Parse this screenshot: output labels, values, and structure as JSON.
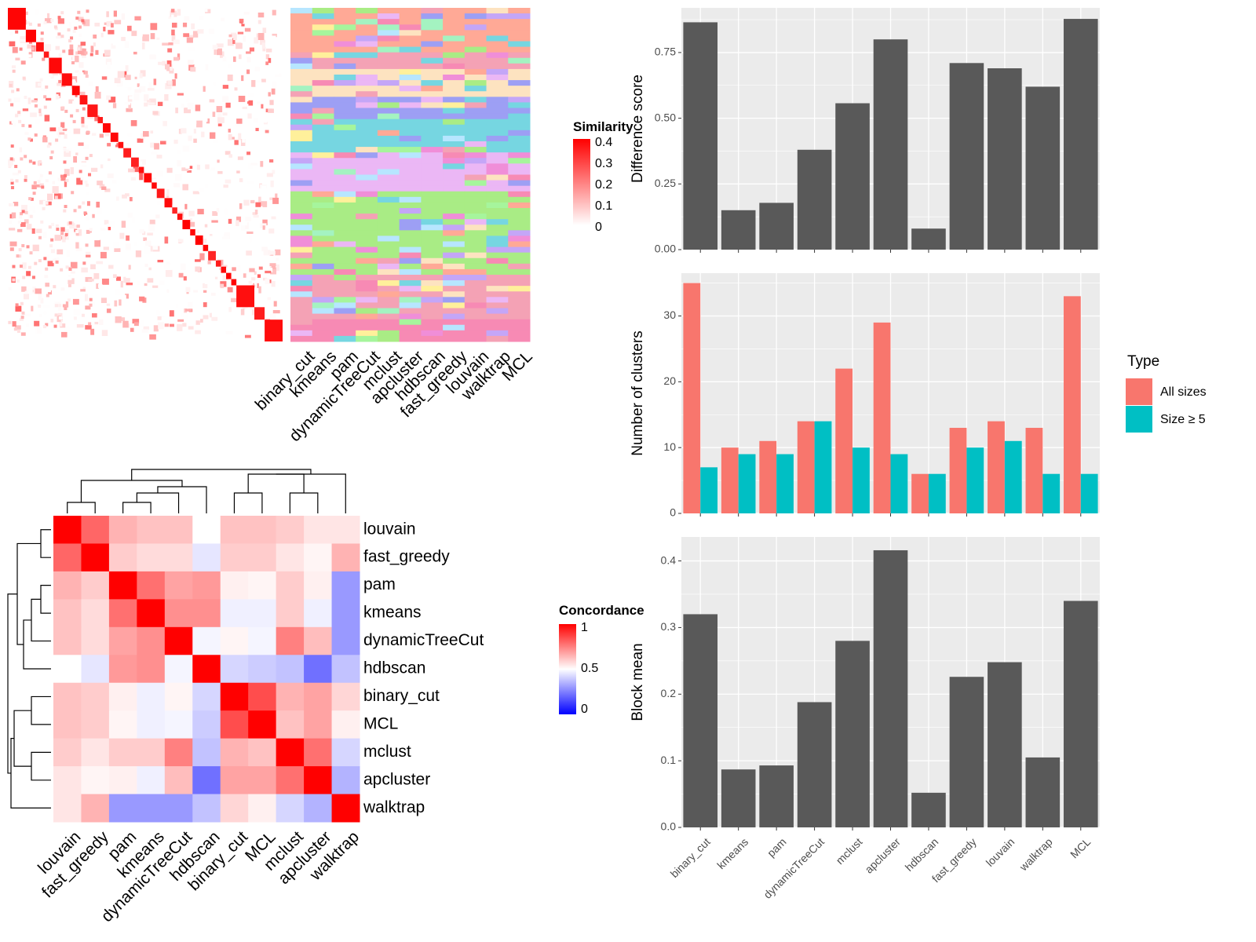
{
  "methods": [
    "binary_cut",
    "kmeans",
    "pam",
    "dynamicTreeCut",
    "mclust",
    "apcluster",
    "hdbscan",
    "fast_greedy",
    "louvain",
    "walktrap",
    "MCL"
  ],
  "concordance_order": [
    "louvain",
    "fast_greedy",
    "pam",
    "kmeans",
    "dynamicTreeCut",
    "hdbscan",
    "binary_cut",
    "MCL",
    "mclust",
    "apcluster",
    "walktrap"
  ],
  "colors": {
    "bar": "#595959",
    "all_sizes": "#F8766D",
    "size5": "#00BFC4",
    "panel_bg": "#EBEBEB",
    "grid": "#FFFFFF",
    "heat_high": "#FF0000",
    "heat_mid": "#FFFFFF",
    "heat_low": "#0000FF"
  },
  "legends": {
    "similarity": {
      "title": "Similarity",
      "ticks": [
        "0.4",
        "0.3",
        "0.2",
        "0.1",
        "0"
      ]
    },
    "concordance": {
      "title": "Concordance",
      "ticks": [
        "1",
        "0.5",
        "0"
      ]
    }
  },
  "chart_data": [
    {
      "type": "heatmap",
      "id": "similarity-matrix",
      "description_free": true,
      "legend": "Similarity",
      "scale": [
        0,
        0.4
      ],
      "clusters_along_diagonal": true
    },
    {
      "type": "heatmap",
      "id": "cluster-membership",
      "columns": [
        "binary_cut",
        "kmeans",
        "pam",
        "dynamicTreeCut",
        "mclust",
        "apcluster",
        "hdbscan",
        "fast_greedy",
        "louvain",
        "walktrap",
        "MCL"
      ]
    },
    {
      "type": "heatmap",
      "id": "concordance",
      "legend": "Concordance",
      "scale": [
        0,
        1
      ],
      "rows": [
        "louvain",
        "fast_greedy",
        "pam",
        "kmeans",
        "dynamicTreeCut",
        "hdbscan",
        "binary_cut",
        "MCL",
        "mclust",
        "apcluster",
        "walktrap"
      ],
      "columns": [
        "louvain",
        "fast_greedy",
        "pam",
        "kmeans",
        "dynamicTreeCut",
        "hdbscan",
        "binary_cut",
        "MCL",
        "mclust",
        "apcluster",
        "walktrap"
      ],
      "values": [
        [
          1.0,
          0.8,
          0.65,
          0.62,
          0.62,
          0.5,
          0.62,
          0.62,
          0.6,
          0.55,
          0.55
        ],
        [
          0.8,
          1.0,
          0.6,
          0.57,
          0.57,
          0.45,
          0.6,
          0.6,
          0.55,
          0.52,
          0.65
        ],
        [
          0.65,
          0.6,
          1.0,
          0.78,
          0.68,
          0.7,
          0.53,
          0.52,
          0.6,
          0.53,
          0.3
        ],
        [
          0.62,
          0.57,
          0.78,
          1.0,
          0.72,
          0.72,
          0.47,
          0.47,
          0.6,
          0.47,
          0.3
        ],
        [
          0.62,
          0.57,
          0.68,
          0.72,
          1.0,
          0.48,
          0.52,
          0.48,
          0.75,
          0.63,
          0.3
        ],
        [
          0.5,
          0.45,
          0.7,
          0.72,
          0.48,
          1.0,
          0.42,
          0.4,
          0.38,
          0.22,
          0.38
        ],
        [
          0.62,
          0.6,
          0.53,
          0.47,
          0.52,
          0.42,
          1.0,
          0.85,
          0.65,
          0.68,
          0.58
        ],
        [
          0.62,
          0.6,
          0.52,
          0.47,
          0.48,
          0.4,
          0.85,
          1.0,
          0.62,
          0.68,
          0.53
        ],
        [
          0.6,
          0.55,
          0.6,
          0.6,
          0.75,
          0.38,
          0.65,
          0.62,
          1.0,
          0.78,
          0.42
        ],
        [
          0.55,
          0.52,
          0.53,
          0.47,
          0.63,
          0.22,
          0.68,
          0.68,
          0.78,
          1.0,
          0.35
        ],
        [
          0.55,
          0.65,
          0.3,
          0.3,
          0.3,
          0.38,
          0.58,
          0.53,
          0.42,
          0.35,
          1.0
        ]
      ]
    },
    {
      "type": "bar",
      "id": "difference-score",
      "categories": [
        "binary_cut",
        "kmeans",
        "pam",
        "dynamicTreeCut",
        "mclust",
        "apcluster",
        "hdbscan",
        "fast_greedy",
        "louvain",
        "walktrap",
        "MCL"
      ],
      "values": [
        0.865,
        0.15,
        0.178,
        0.38,
        0.557,
        0.8,
        0.08,
        0.71,
        0.69,
        0.62,
        0.878
      ],
      "ylabel": "Difference score",
      "ylim": [
        0,
        0.92
      ],
      "yticks": [
        0.0,
        0.25,
        0.5,
        0.75
      ],
      "ytick_labels": [
        "0.00",
        "0.25",
        "0.50",
        "0.75"
      ],
      "grid": true
    },
    {
      "type": "bar",
      "id": "number-of-clusters",
      "categories": [
        "binary_cut",
        "kmeans",
        "pam",
        "dynamicTreeCut",
        "mclust",
        "apcluster",
        "hdbscan",
        "fast_greedy",
        "louvain",
        "walktrap",
        "MCL"
      ],
      "series": [
        {
          "name": "All sizes",
          "values": [
            35,
            10,
            11,
            14,
            22,
            29,
            6,
            13,
            14,
            13,
            33
          ]
        },
        {
          "name": "Size ≥ 5",
          "values": [
            7,
            9,
            9,
            14,
            10,
            9,
            6,
            10,
            11,
            6,
            6
          ]
        }
      ],
      "ylabel": "Number of clusters",
      "ylim": [
        0,
        36.5
      ],
      "yticks": [
        0,
        10,
        20,
        30
      ],
      "ytick_labels": [
        "0",
        "10",
        "20",
        "30"
      ],
      "legend_title": "Type",
      "legend_position": "right",
      "grid": true
    },
    {
      "type": "bar",
      "id": "block-mean",
      "categories": [
        "binary_cut",
        "kmeans",
        "pam",
        "dynamicTreeCut",
        "mclust",
        "apcluster",
        "hdbscan",
        "fast_greedy",
        "louvain",
        "walktrap",
        "MCL"
      ],
      "values": [
        0.32,
        0.087,
        0.093,
        0.188,
        0.28,
        0.416,
        0.052,
        0.226,
        0.248,
        0.105,
        0.34
      ],
      "ylabel": "Block mean",
      "ylim": [
        0,
        0.436
      ],
      "yticks": [
        0.0,
        0.1,
        0.2,
        0.3,
        0.4
      ],
      "ytick_labels": [
        "0.0",
        "0.1",
        "0.2",
        "0.3",
        "0.4"
      ],
      "grid": true
    }
  ]
}
